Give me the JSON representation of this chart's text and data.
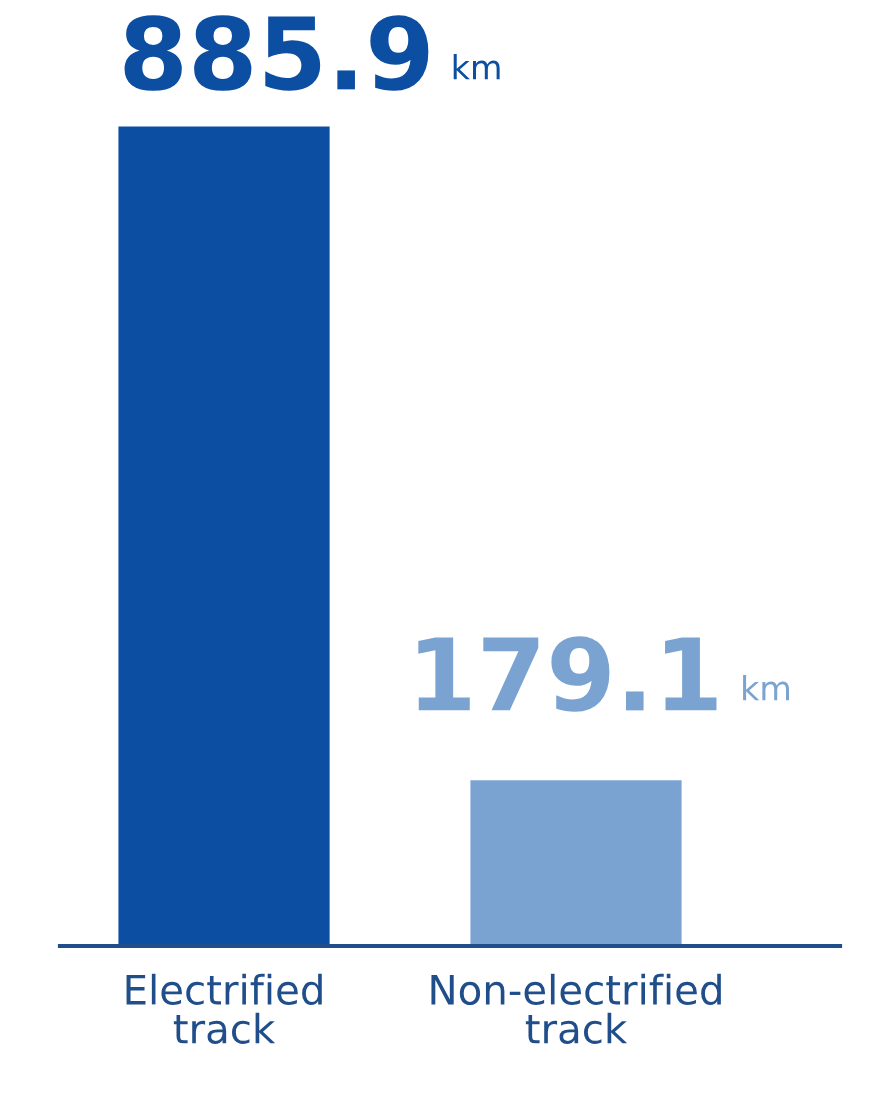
{
  "chart_data": {
    "type": "bar",
    "categories": [
      "Electrified\ntrack",
      "Non-electrified\ntrack"
    ],
    "values": [
      885.9,
      179.1
    ],
    "colors": [
      "#0b4ea2",
      "#7aa3d2"
    ],
    "value_labels": [
      "885.9 km",
      "179.1 km"
    ],
    "grid": false
  }
}
